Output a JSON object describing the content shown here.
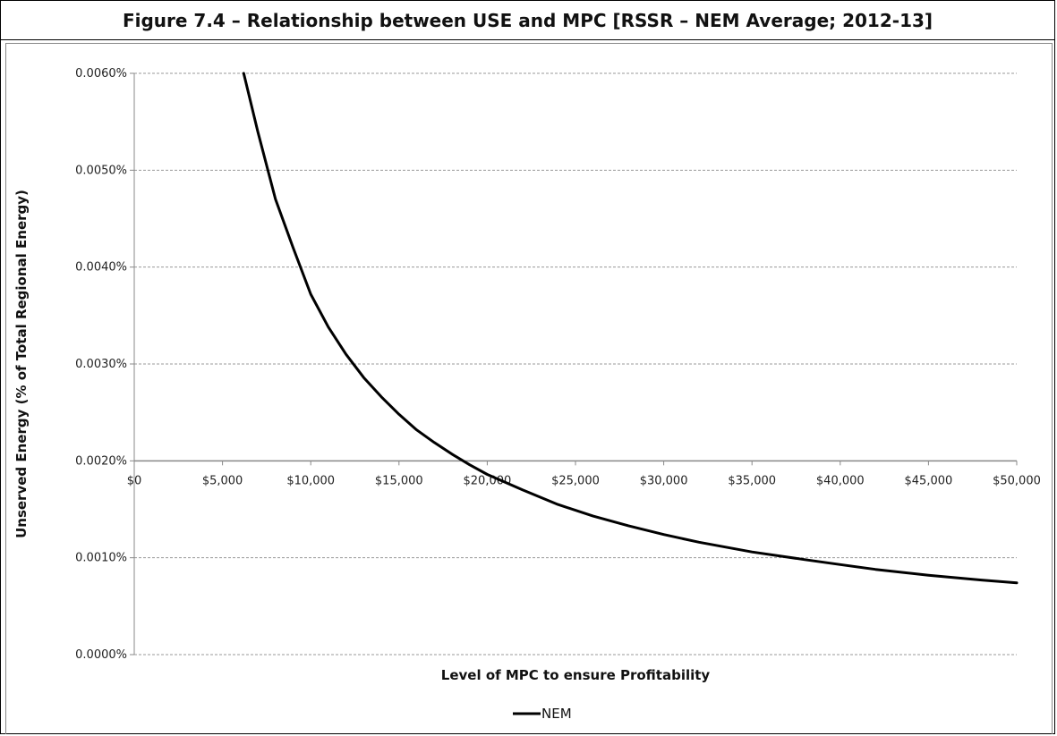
{
  "title": "Figure 7.4 – Relationship between USE and MPC [RSSR – NEM Average; 2012-13]",
  "chart_data": {
    "type": "line",
    "xlabel": "Level of MPC to ensure Profitability",
    "ylabel": "Unserved Energy (% of Total Regional Energy)",
    "xlim": [
      0,
      50000
    ],
    "ylim": [
      0.0,
      0.006
    ],
    "x_axis_crosses_y_at": 0.002,
    "grid": "horizontal dashed",
    "legend_position": "bottom-center",
    "x_tick_labels": [
      "$0",
      "$5,000",
      "$10,000",
      "$15,000",
      "$20,000",
      "$25,000",
      "$30,000",
      "$35,000",
      "$40,000",
      "$45,000",
      "$50,000"
    ],
    "y_tick_labels": [
      "0.0000%",
      "0.0010%",
      "0.0020%",
      "0.0030%",
      "0.0040%",
      "0.0050%",
      "0.0060%"
    ],
    "series": [
      {
        "name": "NEM",
        "color": "#000000",
        "x": [
          6200,
          7000,
          8000,
          9000,
          10000,
          11000,
          12000,
          13000,
          14000,
          15000,
          16000,
          17000,
          18000,
          19000,
          20000,
          22000,
          24000,
          26000,
          28000,
          30000,
          32000,
          35000,
          38000,
          40000,
          42000,
          45000,
          48000,
          50000
        ],
        "y": [
          0.006,
          0.0054,
          0.0047,
          0.0042,
          0.00372,
          0.00338,
          0.0031,
          0.00286,
          0.00266,
          0.00248,
          0.00232,
          0.00219,
          0.00207,
          0.00196,
          0.00186,
          0.0017,
          0.00155,
          0.00143,
          0.00133,
          0.00124,
          0.00116,
          0.00106,
          0.00098,
          0.00093,
          0.00088,
          0.00082,
          0.00077,
          0.00074
        ]
      }
    ]
  }
}
